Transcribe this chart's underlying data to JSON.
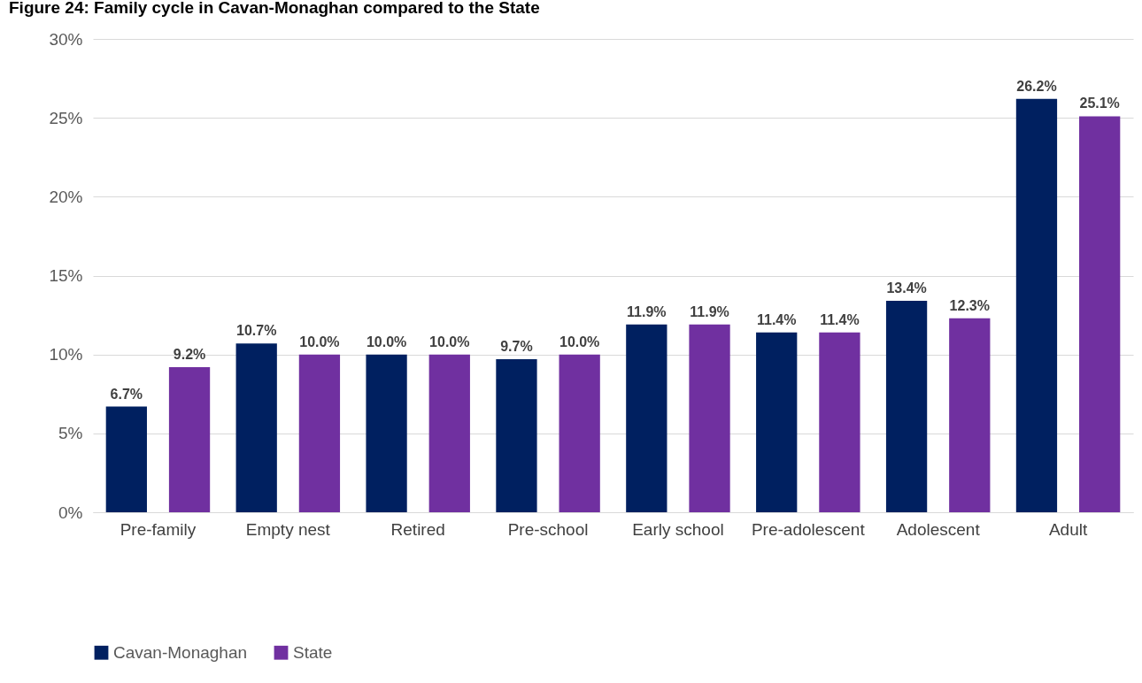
{
  "chart_data": {
    "type": "bar",
    "title": "Figure 24: Family cycle in Cavan-Monaghan compared to the State",
    "categories": [
      "Pre-family",
      "Empty nest",
      "Retired",
      "Pre-school",
      "Early school",
      "Pre-adolescent",
      "Adolescent",
      "Adult"
    ],
    "series": [
      {
        "name": "Cavan-Monaghan",
        "color": "#002060",
        "values": [
          6.7,
          10.7,
          10.0,
          9.7,
          11.9,
          11.4,
          13.4,
          26.2
        ],
        "value_labels": [
          "6.7%",
          "10.7%",
          "10.0%",
          "9.7%",
          "11.9%",
          "11.4%",
          "13.4%",
          "26.2%"
        ]
      },
      {
        "name": "State",
        "color": "#7030a0",
        "values": [
          9.2,
          10.0,
          10.0,
          10.0,
          11.9,
          11.4,
          12.3,
          25.1
        ],
        "value_labels": [
          "9.2%",
          "10.0%",
          "10.0%",
          "10.0%",
          "11.9%",
          "11.4%",
          "12.3%",
          "25.1%"
        ]
      }
    ],
    "ylim": [
      0,
      30
    ],
    "yticks": [
      {
        "value": 0,
        "label": "0%"
      },
      {
        "value": 5,
        "label": "5%"
      },
      {
        "value": 10,
        "label": "10%"
      },
      {
        "value": 15,
        "label": "15%"
      },
      {
        "value": 20,
        "label": "20%"
      },
      {
        "value": 25,
        "label": "25%"
      },
      {
        "value": 30,
        "label": "30%"
      }
    ],
    "grid": "y",
    "legend": "bottom"
  }
}
